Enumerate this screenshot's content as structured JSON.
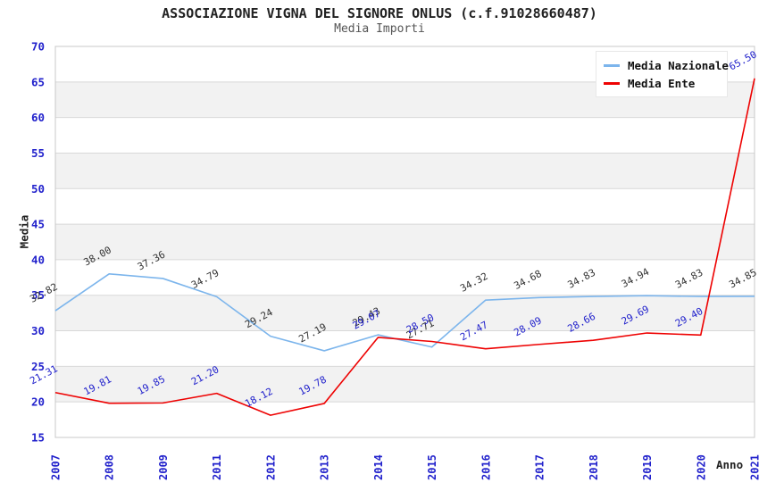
{
  "chart_data": {
    "type": "line",
    "title": "ASSOCIAZIONE VIGNA DEL SIGNORE ONLUS (c.f.91028660487)",
    "subtitle": "Media Importi",
    "x": [
      "2007",
      "2008",
      "2009",
      "2011",
      "2012",
      "2013",
      "2014",
      "2015",
      "2016",
      "2017",
      "2018",
      "2019",
      "2020",
      "2021"
    ],
    "series": [
      {
        "name": "Media Nazionale",
        "color": "#7cb5ec",
        "label_color": "#333333",
        "values": [
          32.82,
          38.0,
          37.36,
          34.79,
          29.24,
          27.19,
          29.43,
          27.71,
          34.32,
          34.68,
          34.83,
          34.94,
          34.83,
          34.85
        ]
      },
      {
        "name": "Media Ente",
        "color": "#ee0202",
        "label_color": "#2222cc",
        "values": [
          21.31,
          19.81,
          19.85,
          21.2,
          18.12,
          19.78,
          29.07,
          28.5,
          27.47,
          28.09,
          28.66,
          29.69,
          29.4,
          65.5
        ]
      }
    ],
    "xlabel": "Anno",
    "ylabel": "Media",
    "ylim": [
      15,
      70
    ],
    "ytick_step": 5,
    "grid": true,
    "legend_position": "top-right",
    "tick_color": "#2222cc",
    "band_fill": "#f2f2f2",
    "grid_color": "#d8d8d8",
    "border_color": "#c8c8c8"
  }
}
